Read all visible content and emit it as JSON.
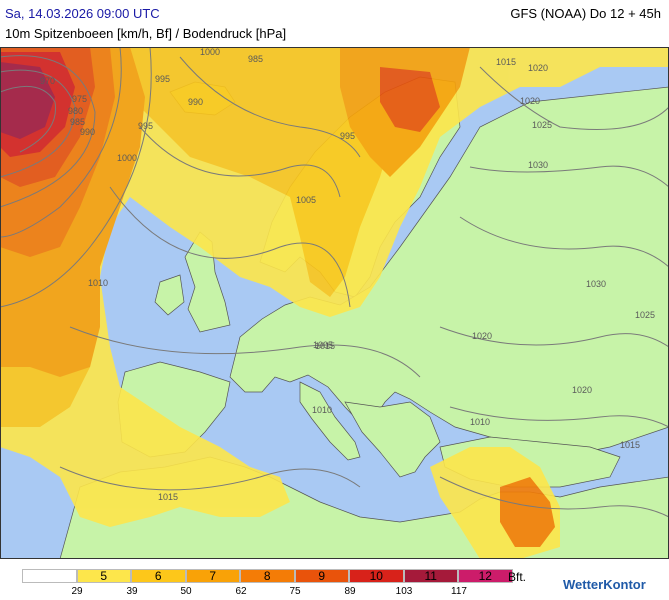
{
  "header": {
    "date": "Sa, 14.03.2026 09:00 UTC",
    "model": "GFS (NOAA) Do 12 + 45h",
    "parameter": "10m Spitzenboeen [km/h, Bf] / Bodendruck [hPa]"
  },
  "legend": {
    "unit": "Bft.",
    "cells": [
      {
        "bf": "",
        "color": "#ffffff"
      },
      {
        "bf": "5",
        "color": "#fde64b"
      },
      {
        "bf": "6",
        "color": "#fdc71a"
      },
      {
        "bf": "7",
        "color": "#f9a207"
      },
      {
        "bf": "8",
        "color": "#f47c06"
      },
      {
        "bf": "9",
        "color": "#e9530b"
      },
      {
        "bf": "10",
        "color": "#d8221a"
      },
      {
        "bf": "11",
        "color": "#a51a3a"
      },
      {
        "bf": "12",
        "color": "#cc1c6a"
      }
    ],
    "kmh": [
      "29",
      "39",
      "50",
      "62",
      "75",
      "89",
      "103",
      "117"
    ]
  },
  "isobar_labels": [
    "970",
    "975",
    "980",
    "985",
    "990",
    "995",
    "1000",
    "995",
    "990",
    "985",
    "995",
    "1000",
    "1005",
    "1010",
    "1015",
    "1015",
    "1020",
    "1020",
    "1025",
    "1030",
    "1030",
    "1025",
    "1020",
    "1020",
    "1015",
    "1010",
    "1015",
    "1005",
    "1010"
  ],
  "brand": "WetterKontor",
  "colors": {
    "sea": "#a9c9f3",
    "land": "#c7f3a8"
  }
}
